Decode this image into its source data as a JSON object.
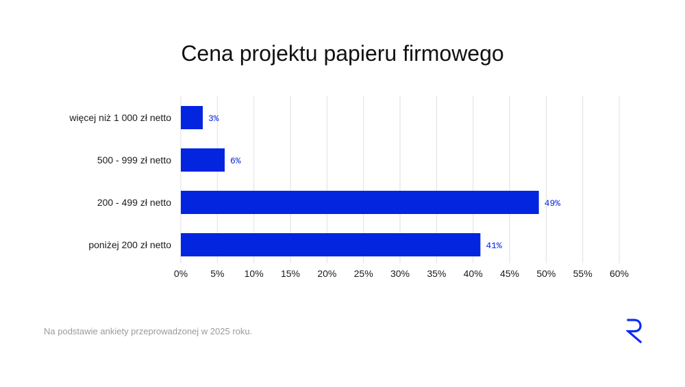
{
  "chart_data": {
    "type": "bar",
    "orientation": "horizontal",
    "title": "Cena projektu papieru firmowego",
    "categories": [
      "więcej niż 1 000 zł netto",
      "500 - 999 zł netto",
      "200 - 499 zł netto",
      "poniżej 200 zł netto"
    ],
    "values": [
      3,
      6,
      49,
      41
    ],
    "value_labels": [
      "3%",
      "6%",
      "49%",
      "41%"
    ],
    "xlim": [
      0,
      60
    ],
    "xticks": [
      0,
      5,
      10,
      15,
      20,
      25,
      30,
      35,
      40,
      45,
      50,
      55,
      60
    ],
    "xtick_labels": [
      "0%",
      "5%",
      "10%",
      "15%",
      "20%",
      "25%",
      "30%",
      "35%",
      "40%",
      "45%",
      "50%",
      "55%",
      "60%"
    ],
    "xlabel": "",
    "ylabel": "",
    "grid": "vertical",
    "bar_color": "#0325e0",
    "label_color": "#0325e0"
  },
  "footnote": "Na podstawie ankiety przeprowadzonej w 2025 roku.",
  "logo_color": "#0a2bf5"
}
